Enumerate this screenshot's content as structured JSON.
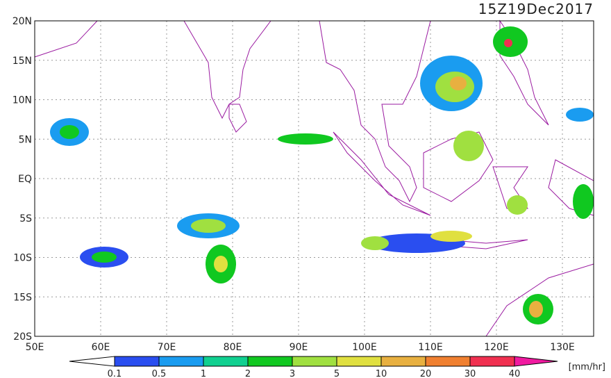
{
  "title": "15Z19Dec2017",
  "lat_labels": [
    "20N",
    "15N",
    "10N",
    "5N",
    "EQ",
    "5S",
    "10S",
    "15S",
    "20S"
  ],
  "lon_labels": [
    "50E",
    "60E",
    "70E",
    "80E",
    "90E",
    "100E",
    "110E",
    "120E",
    "130E"
  ],
  "colorbar": {
    "labels": [
      "0.1",
      "0.5",
      "1",
      "2",
      "3",
      "5",
      "10",
      "20",
      "30",
      "40"
    ],
    "unit": "[mm/hr]"
  }
}
